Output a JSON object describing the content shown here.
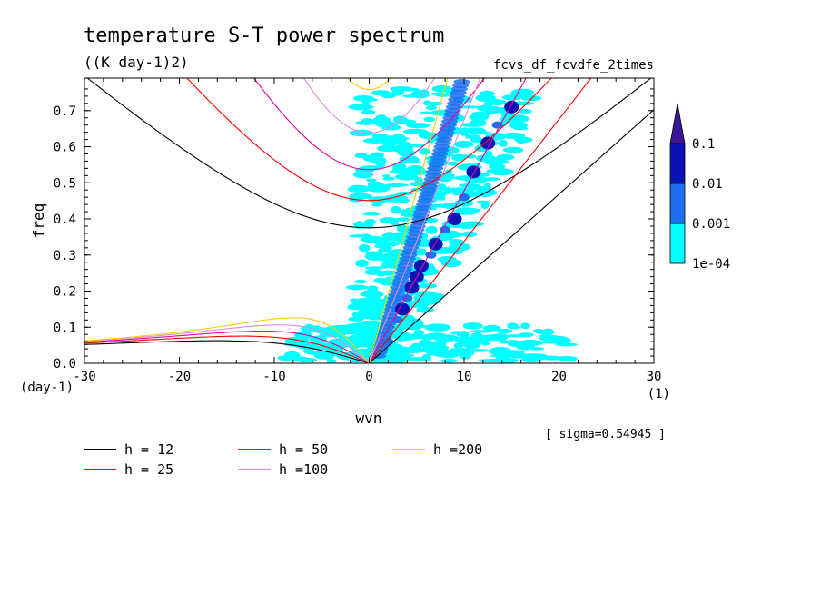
{
  "chart_data": {
    "type": "heatmap",
    "title": "temperature S-T power spectrum",
    "units": "((K day-1)2)",
    "run_label": "fcvs_df_fcvdfe_2times",
    "xlabel": "wvn",
    "ylabel": "freq",
    "x_unit": "(1)",
    "y_unit": "(day-1)",
    "xlim": [
      -30,
      30
    ],
    "ylim": [
      0,
      0.79
    ],
    "x_ticks": [
      -30,
      -20,
      -10,
      0,
      10,
      20,
      30
    ],
    "y_ticks": [
      0.0,
      0.1,
      0.2,
      0.3,
      0.4,
      0.5,
      0.6,
      0.7
    ],
    "x_tick_labels": [
      "-30",
      "-20",
      "-10",
      "0",
      "10",
      "20",
      "30"
    ],
    "y_tick_labels": [
      "0.0",
      "0.1",
      "0.2",
      "0.3",
      "0.4",
      "0.5",
      "0.6",
      "0.7"
    ],
    "sigma_label": "[ sigma=0.54945 ]",
    "colorbar": {
      "levels": [
        "1e-04",
        "0.001",
        "0.01",
        "0.1"
      ],
      "colors": [
        "#00ffff",
        "#1e6ef0",
        "#0a14b4",
        "#3c1496"
      ]
    },
    "dispersion_curves": [
      {
        "label": "h = 12",
        "h": 12,
        "color": "#000000"
      },
      {
        "label": "h = 25",
        "h": 25,
        "color": "#ff0000"
      },
      {
        "label": "h = 50",
        "h": 50,
        "color": "#e6009c"
      },
      {
        "label": "h =100",
        "h": 100,
        "color": "#dc8cdc"
      },
      {
        "label": "h =200",
        "h": 200,
        "color": "#f0d200"
      }
    ],
    "power_blobs": [
      {
        "x": 5.5,
        "y": 0.27,
        "level": "0.01"
      },
      {
        "x": 5.0,
        "y": 0.24,
        "level": "0.01"
      },
      {
        "x": 4.5,
        "y": 0.21,
        "level": "0.01"
      },
      {
        "x": 3.5,
        "y": 0.15,
        "level": "0.01"
      },
      {
        "x": 7.0,
        "y": 0.33,
        "level": "0.01"
      },
      {
        "x": 9.0,
        "y": 0.4,
        "level": "0.01"
      },
      {
        "x": 11.0,
        "y": 0.53,
        "level": "0.01"
      },
      {
        "x": 12.5,
        "y": 0.61,
        "level": "0.01"
      },
      {
        "x": 15.0,
        "y": 0.71,
        "level": "0.01"
      },
      {
        "x": 2.0,
        "y": 0.06,
        "level": "0.001"
      },
      {
        "x": 4.0,
        "y": 0.18,
        "level": "0.001"
      },
      {
        "x": 6.5,
        "y": 0.3,
        "level": "0.001"
      },
      {
        "x": 8.0,
        "y": 0.37,
        "level": "0.001"
      },
      {
        "x": 10.0,
        "y": 0.46,
        "level": "0.001"
      },
      {
        "x": 13.5,
        "y": 0.66,
        "level": "0.001"
      },
      {
        "x": 3.0,
        "y": 0.12,
        "level": "0.001"
      }
    ]
  }
}
